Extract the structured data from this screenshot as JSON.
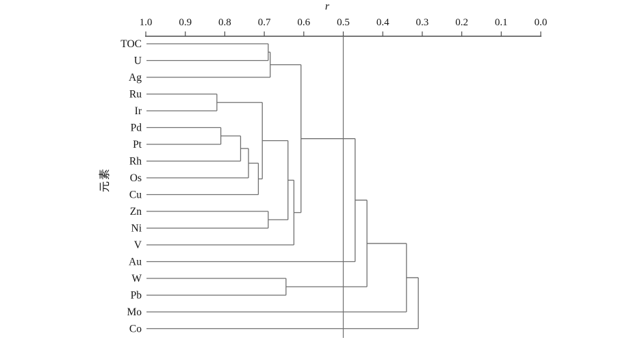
{
  "figure": {
    "background_color": "#ffffff",
    "link_color": "#6f6f6f",
    "axis_color": "#4a4a4a",
    "reference_line_color": "#6f6f6f",
    "text_color": "#141414"
  },
  "chart_data": {
    "type": "dendrogram",
    "orientation": "horizontal, leaves on left, r decreasing left-to-right",
    "title": "",
    "xlabel": "r",
    "ylabel": "元素",
    "x_range": [
      1.0,
      0.0
    ],
    "x_ticks": [
      "1.0",
      "0.9",
      "0.8",
      "0.7",
      "0.6",
      "0.5",
      "0.4",
      "0.3",
      "0.2",
      "0.1",
      "0.0"
    ],
    "reference_line_r": 0.5,
    "grid": false,
    "leaves": [
      "TOC",
      "U",
      "Ag",
      "Ru",
      "Ir",
      "Pd",
      "Pt",
      "Rh",
      "Os",
      "Cu",
      "Zn",
      "Ni",
      "V",
      "Au",
      "W",
      "Pb",
      "Mo",
      "Co"
    ],
    "merges": [
      {
        "id": "m1",
        "children": [
          "TOC",
          "U"
        ],
        "r": 0.69
      },
      {
        "id": "m2",
        "children": [
          "m1",
          "Ag"
        ],
        "r": 0.685
      },
      {
        "id": "m3",
        "children": [
          "Ru",
          "Ir"
        ],
        "r": 0.82
      },
      {
        "id": "m4",
        "children": [
          "Pd",
          "Pt"
        ],
        "r": 0.81
      },
      {
        "id": "m5",
        "children": [
          "m4",
          "Rh"
        ],
        "r": 0.76
      },
      {
        "id": "m6",
        "children": [
          "m5",
          "Os"
        ],
        "r": 0.74
      },
      {
        "id": "m7",
        "children": [
          "m6",
          "Cu"
        ],
        "r": 0.715
      },
      {
        "id": "m8",
        "children": [
          "m3",
          "m7"
        ],
        "r": 0.705
      },
      {
        "id": "m9",
        "children": [
          "Zn",
          "Ni"
        ],
        "r": 0.69
      },
      {
        "id": "m10",
        "children": [
          "m8",
          "m9"
        ],
        "r": 0.64
      },
      {
        "id": "m11",
        "children": [
          "m10",
          "V"
        ],
        "r": 0.625
      },
      {
        "id": "m12",
        "children": [
          "m2",
          "m11"
        ],
        "r": 0.607
      },
      {
        "id": "m13",
        "children": [
          "m12",
          "Au"
        ],
        "r": 0.47
      },
      {
        "id": "m14",
        "children": [
          "W",
          "Pb"
        ],
        "r": 0.645
      },
      {
        "id": "m15",
        "children": [
          "m13",
          "m14"
        ],
        "r": 0.44
      },
      {
        "id": "m16",
        "children": [
          "m15",
          "Mo"
        ],
        "r": 0.34
      },
      {
        "id": "m17",
        "children": [
          "m16",
          "Co"
        ],
        "r": 0.31
      }
    ]
  }
}
